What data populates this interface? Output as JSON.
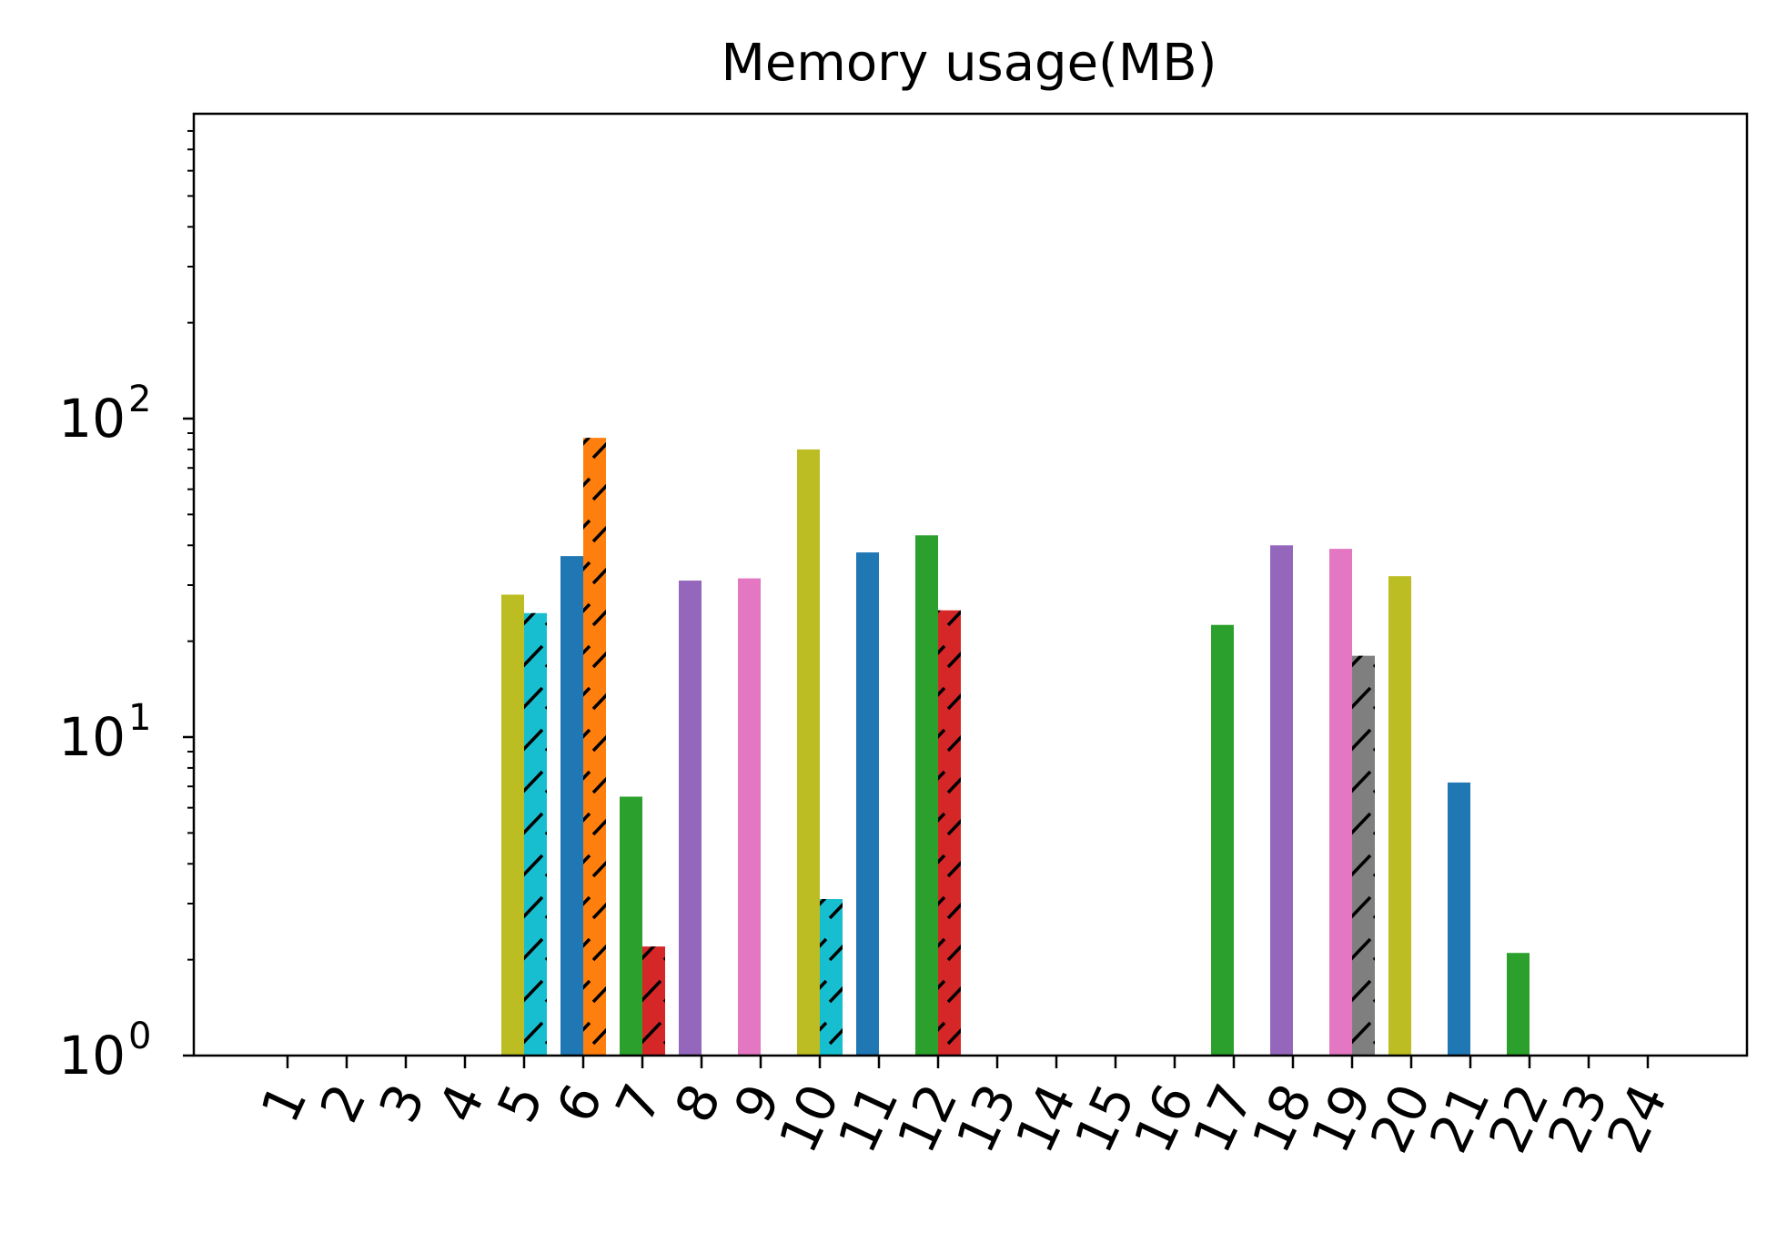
{
  "chart_data": {
    "type": "bar",
    "title": "Memory usage(MB)",
    "xlabel": "",
    "ylabel": "",
    "yscale": "log",
    "ylim": [
      1,
      800
    ],
    "grid": false,
    "yticks": [
      {
        "value": 1,
        "base": "10",
        "exp": "0"
      },
      {
        "value": 10,
        "base": "10",
        "exp": "1"
      },
      {
        "value": 100,
        "base": "10",
        "exp": "2"
      }
    ],
    "categories": [
      "1",
      "2",
      "3",
      "4",
      "5",
      "6",
      "7",
      "8",
      "9",
      "10",
      "11",
      "12",
      "13",
      "14",
      "15",
      "16",
      "17",
      "18",
      "19",
      "20",
      "21",
      "22",
      "23",
      "24"
    ],
    "bars": [
      {
        "category": "5",
        "side": "left",
        "value": 28,
        "color": "#bcbd22",
        "hatched": false
      },
      {
        "category": "5",
        "side": "right",
        "value": 24.5,
        "color": "#17becf",
        "hatched": true
      },
      {
        "category": "6",
        "side": "left",
        "value": 37,
        "color": "#1f77b4",
        "hatched": false
      },
      {
        "category": "6",
        "side": "right",
        "value": 87,
        "color": "#ff7f0e",
        "hatched": true
      },
      {
        "category": "7",
        "side": "left",
        "value": 6.5,
        "color": "#2ca02c",
        "hatched": false
      },
      {
        "category": "7",
        "side": "right",
        "value": 2.2,
        "color": "#d62728",
        "hatched": true
      },
      {
        "category": "8",
        "side": "left",
        "value": 31,
        "color": "#9467bd",
        "hatched": false
      },
      {
        "category": "9",
        "side": "left",
        "value": 31.5,
        "color": "#e377c2",
        "hatched": false
      },
      {
        "category": "10",
        "side": "left",
        "value": 80,
        "color": "#bcbd22",
        "hatched": false
      },
      {
        "category": "10",
        "side": "right",
        "value": 3.1,
        "color": "#17becf",
        "hatched": true
      },
      {
        "category": "11",
        "side": "left",
        "value": 38,
        "color": "#1f77b4",
        "hatched": false
      },
      {
        "category": "12",
        "side": "left",
        "value": 43,
        "color": "#2ca02c",
        "hatched": false
      },
      {
        "category": "12",
        "side": "right",
        "value": 25,
        "color": "#d62728",
        "hatched": true
      },
      {
        "category": "17",
        "side": "left",
        "value": 22.5,
        "color": "#2ca02c",
        "hatched": false
      },
      {
        "category": "18",
        "side": "left",
        "value": 40,
        "color": "#9467bd",
        "hatched": false
      },
      {
        "category": "19",
        "side": "left",
        "value": 39,
        "color": "#e377c2",
        "hatched": false
      },
      {
        "category": "19",
        "side": "right",
        "value": 18,
        "color": "#7f7f7f",
        "hatched": true
      },
      {
        "category": "20",
        "side": "left",
        "value": 32,
        "color": "#bcbd22",
        "hatched": false
      },
      {
        "category": "21",
        "side": "left",
        "value": 7.2,
        "color": "#1f77b4",
        "hatched": false
      },
      {
        "category": "22",
        "side": "left",
        "value": 2.1,
        "color": "#2ca02c",
        "hatched": false
      }
    ]
  }
}
